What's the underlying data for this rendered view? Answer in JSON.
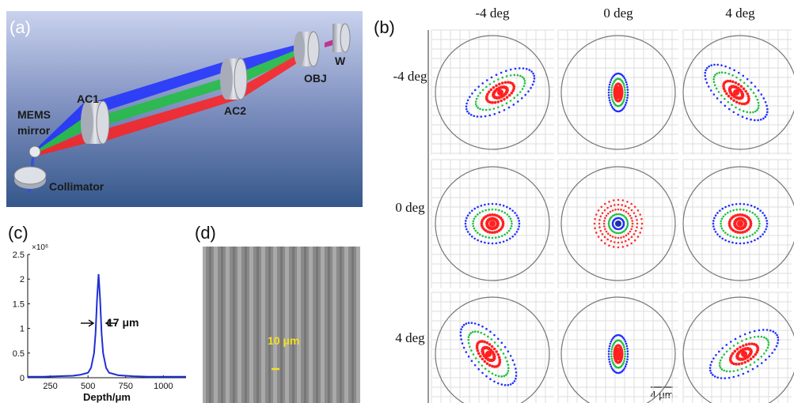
{
  "panel_a": {
    "label": "(a)",
    "components": {
      "ac1": "AC1",
      "mems": [
        "MEMS",
        "mirror"
      ],
      "ac2": "AC2",
      "obj": "OBJ",
      "w": "W",
      "collimator": "Collimator"
    }
  },
  "panel_b": {
    "label": "(b)",
    "columns": [
      "-4 deg",
      "0 deg",
      "4 deg"
    ],
    "rows": [
      "-4 deg",
      "0 deg",
      "4 deg"
    ],
    "scale_bar": "4 μm"
  },
  "chart_data": {
    "type": "line",
    "label": "(c)",
    "y_multiplier": "×10⁶",
    "annotation": "17 μm",
    "x_label": "Depth/μm",
    "x": [
      100,
      200,
      300,
      400,
      450,
      500,
      520,
      540,
      550,
      560,
      570,
      580,
      590,
      600,
      620,
      640,
      700,
      800,
      900,
      1000,
      1100,
      1150
    ],
    "values": [
      0.02,
      0.02,
      0.03,
      0.04,
      0.06,
      0.1,
      0.2,
      0.5,
      0.9,
      1.6,
      2.1,
      1.6,
      0.9,
      0.5,
      0.2,
      0.1,
      0.05,
      0.03,
      0.02,
      0.02,
      0.02,
      0.02
    ],
    "color": "#1f2fd6",
    "xlim": [
      100,
      1150
    ],
    "ylim": [
      0,
      2.5
    ],
    "xticks": [
      250,
      500,
      750,
      1000
    ],
    "yticks": [
      0,
      0.5,
      1,
      1.5,
      2,
      2.5
    ]
  },
  "panel_d": {
    "label": "(d)",
    "scale_bar": "10 μm"
  }
}
